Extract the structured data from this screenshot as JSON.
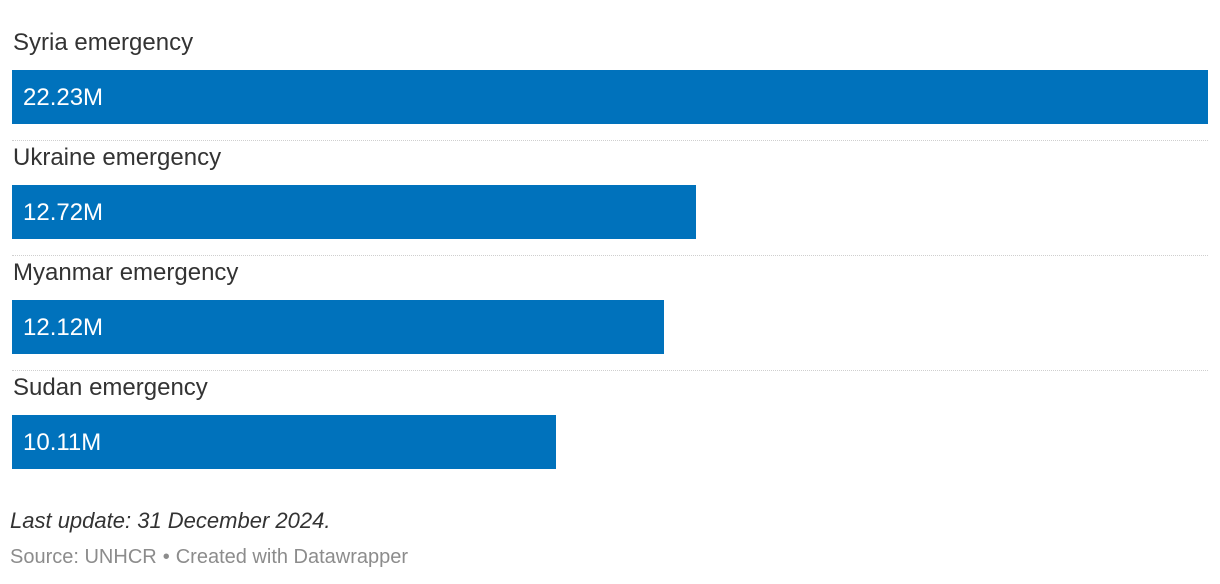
{
  "chart_data": {
    "type": "bar",
    "orientation": "horizontal",
    "categories": [
      "Syria emergency",
      "Ukraine emergency",
      "Myanmar emergency",
      "Sudan emergency"
    ],
    "values": [
      22.23,
      12.72,
      12.12,
      10.11
    ],
    "value_labels": [
      "22.23M",
      "12.72M",
      "12.12M",
      "10.11M"
    ],
    "unit": "M",
    "xlim": [
      0,
      22.23
    ],
    "bar_color": "#0072bc",
    "grid": false,
    "legend": "none"
  },
  "notes": "Last update: 31 December 2024.",
  "footer": {
    "source": "Source: UNHCR",
    "separator": "•",
    "credit": "Created with Datawrapper"
  }
}
